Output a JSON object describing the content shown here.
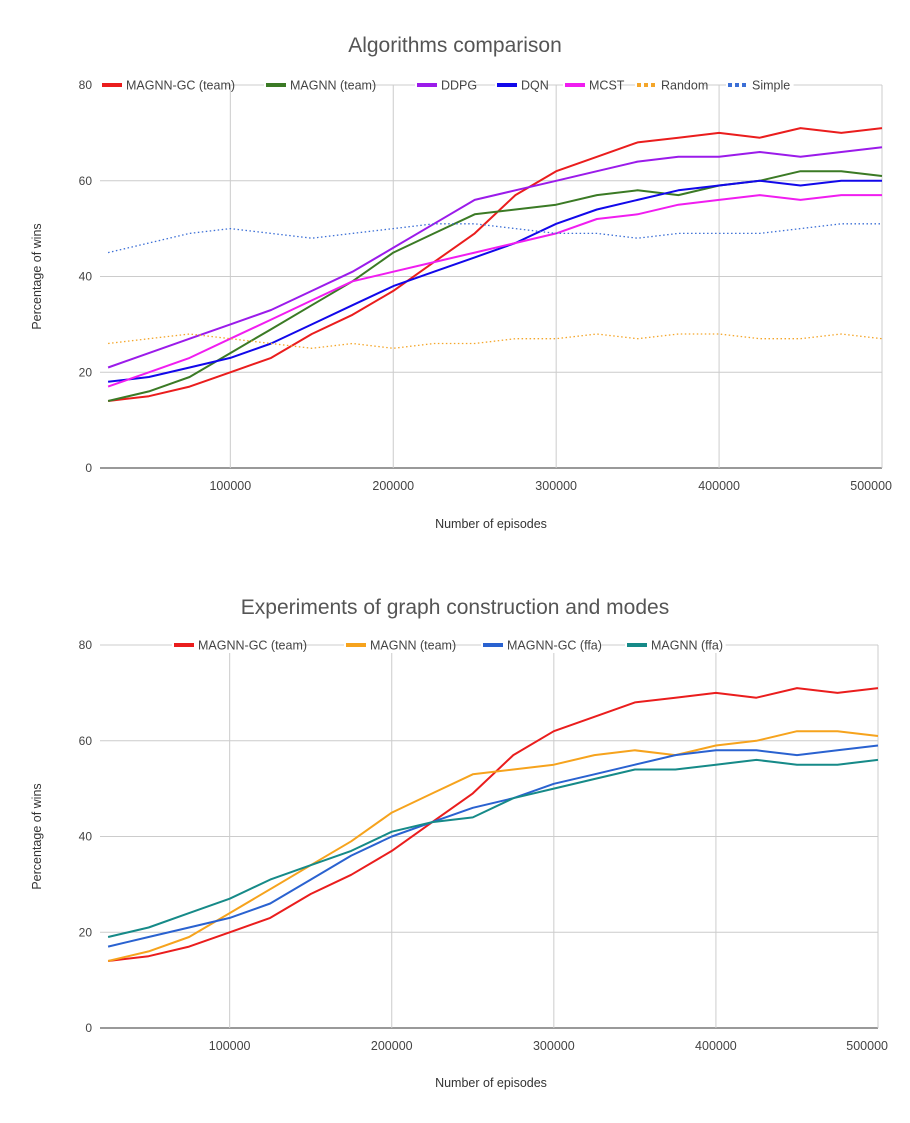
{
  "chart_data": [
    {
      "type": "line",
      "title": "Algorithms comparison",
      "xlabel": "Number of episodes",
      "ylabel": "Percentage of wins",
      "xlim": [
        20000,
        500000
      ],
      "ylim": [
        0,
        80
      ],
      "x_ticks": [
        100000,
        200000,
        300000,
        400000,
        500000
      ],
      "y_ticks": [
        0,
        20,
        40,
        60,
        80
      ],
      "grid": true,
      "legend_position": "top",
      "x": [
        25000,
        50000,
        75000,
        100000,
        125000,
        150000,
        175000,
        200000,
        225000,
        250000,
        275000,
        300000,
        325000,
        350000,
        375000,
        400000,
        425000,
        450000,
        475000,
        500000
      ],
      "series": [
        {
          "name": "MAGNN-GC (team)",
          "color": "#ea1d1d",
          "style": "solid",
          "values": [
            14,
            15,
            17,
            20,
            23,
            28,
            32,
            37,
            43,
            49,
            57,
            62,
            65,
            68,
            69,
            70,
            69,
            71,
            70,
            71
          ]
        },
        {
          "name": "MAGNN (team)",
          "color": "#3b7a25",
          "style": "solid",
          "values": [
            14,
            16,
            19,
            24,
            29,
            34,
            39,
            45,
            49,
            53,
            54,
            55,
            57,
            58,
            57,
            59,
            60,
            62,
            62,
            61
          ]
        },
        {
          "name": "DDPG",
          "color": "#9b1bea",
          "style": "solid",
          "values": [
            21,
            24,
            27,
            30,
            33,
            37,
            41,
            46,
            51,
            56,
            58,
            60,
            62,
            64,
            65,
            65,
            66,
            65,
            66,
            67
          ]
        },
        {
          "name": "DQN",
          "color": "#1208ea",
          "style": "solid",
          "values": [
            18,
            19,
            21,
            23,
            26,
            30,
            34,
            38,
            41,
            44,
            47,
            51,
            54,
            56,
            58,
            59,
            60,
            59,
            60,
            60
          ]
        },
        {
          "name": "MCST",
          "color": "#f01df0",
          "style": "solid",
          "values": [
            17,
            20,
            23,
            27,
            31,
            35,
            39,
            41,
            43,
            45,
            47,
            49,
            52,
            53,
            55,
            56,
            57,
            56,
            57,
            57
          ]
        },
        {
          "name": "Random",
          "color": "#f4a62a",
          "style": "dotted",
          "values": [
            26,
            27,
            28,
            27,
            26,
            25,
            26,
            25,
            26,
            26,
            27,
            27,
            28,
            27,
            28,
            28,
            27,
            27,
            28,
            27
          ]
        },
        {
          "name": "Simple",
          "color": "#3c6fd6",
          "style": "dotted",
          "values": [
            45,
            47,
            49,
            50,
            49,
            48,
            49,
            50,
            51,
            51,
            50,
            49,
            49,
            48,
            49,
            49,
            49,
            50,
            51,
            51
          ]
        }
      ]
    },
    {
      "type": "line",
      "title": "Experiments of graph construction and modes",
      "xlabel": "Number of episodes",
      "ylabel": "Percentage of wins",
      "xlim": [
        20000,
        500000
      ],
      "ylim": [
        0,
        80
      ],
      "x_ticks": [
        100000,
        200000,
        300000,
        400000,
        500000
      ],
      "y_ticks": [
        0,
        20,
        40,
        60,
        80
      ],
      "grid": true,
      "legend_position": "top",
      "x": [
        25000,
        50000,
        75000,
        100000,
        125000,
        150000,
        175000,
        200000,
        225000,
        250000,
        275000,
        300000,
        325000,
        350000,
        375000,
        400000,
        425000,
        450000,
        475000,
        500000
      ],
      "series": [
        {
          "name": "MAGNN-GC (team)",
          "color": "#ea1d1d",
          "style": "solid",
          "values": [
            14,
            15,
            17,
            20,
            23,
            28,
            32,
            37,
            43,
            49,
            57,
            62,
            65,
            68,
            69,
            70,
            69,
            71,
            70,
            71
          ]
        },
        {
          "name": "MAGNN (team)",
          "color": "#f6a31d",
          "style": "solid",
          "values": [
            14,
            16,
            19,
            24,
            29,
            34,
            39,
            45,
            49,
            53,
            54,
            55,
            57,
            58,
            57,
            59,
            60,
            62,
            62,
            61
          ]
        },
        {
          "name": "MAGNN-GC (ffa)",
          "color": "#2a62d0",
          "style": "solid",
          "values": [
            17,
            19,
            21,
            23,
            26,
            31,
            36,
            40,
            43,
            46,
            48,
            51,
            53,
            55,
            57,
            58,
            58,
            57,
            58,
            59
          ]
        },
        {
          "name": "MAGNN (ffa)",
          "color": "#168a88",
          "style": "solid",
          "values": [
            19,
            21,
            24,
            27,
            31,
            34,
            37,
            41,
            43,
            44,
            48,
            50,
            52,
            54,
            54,
            55,
            56,
            55,
            55,
            56
          ]
        }
      ]
    }
  ]
}
